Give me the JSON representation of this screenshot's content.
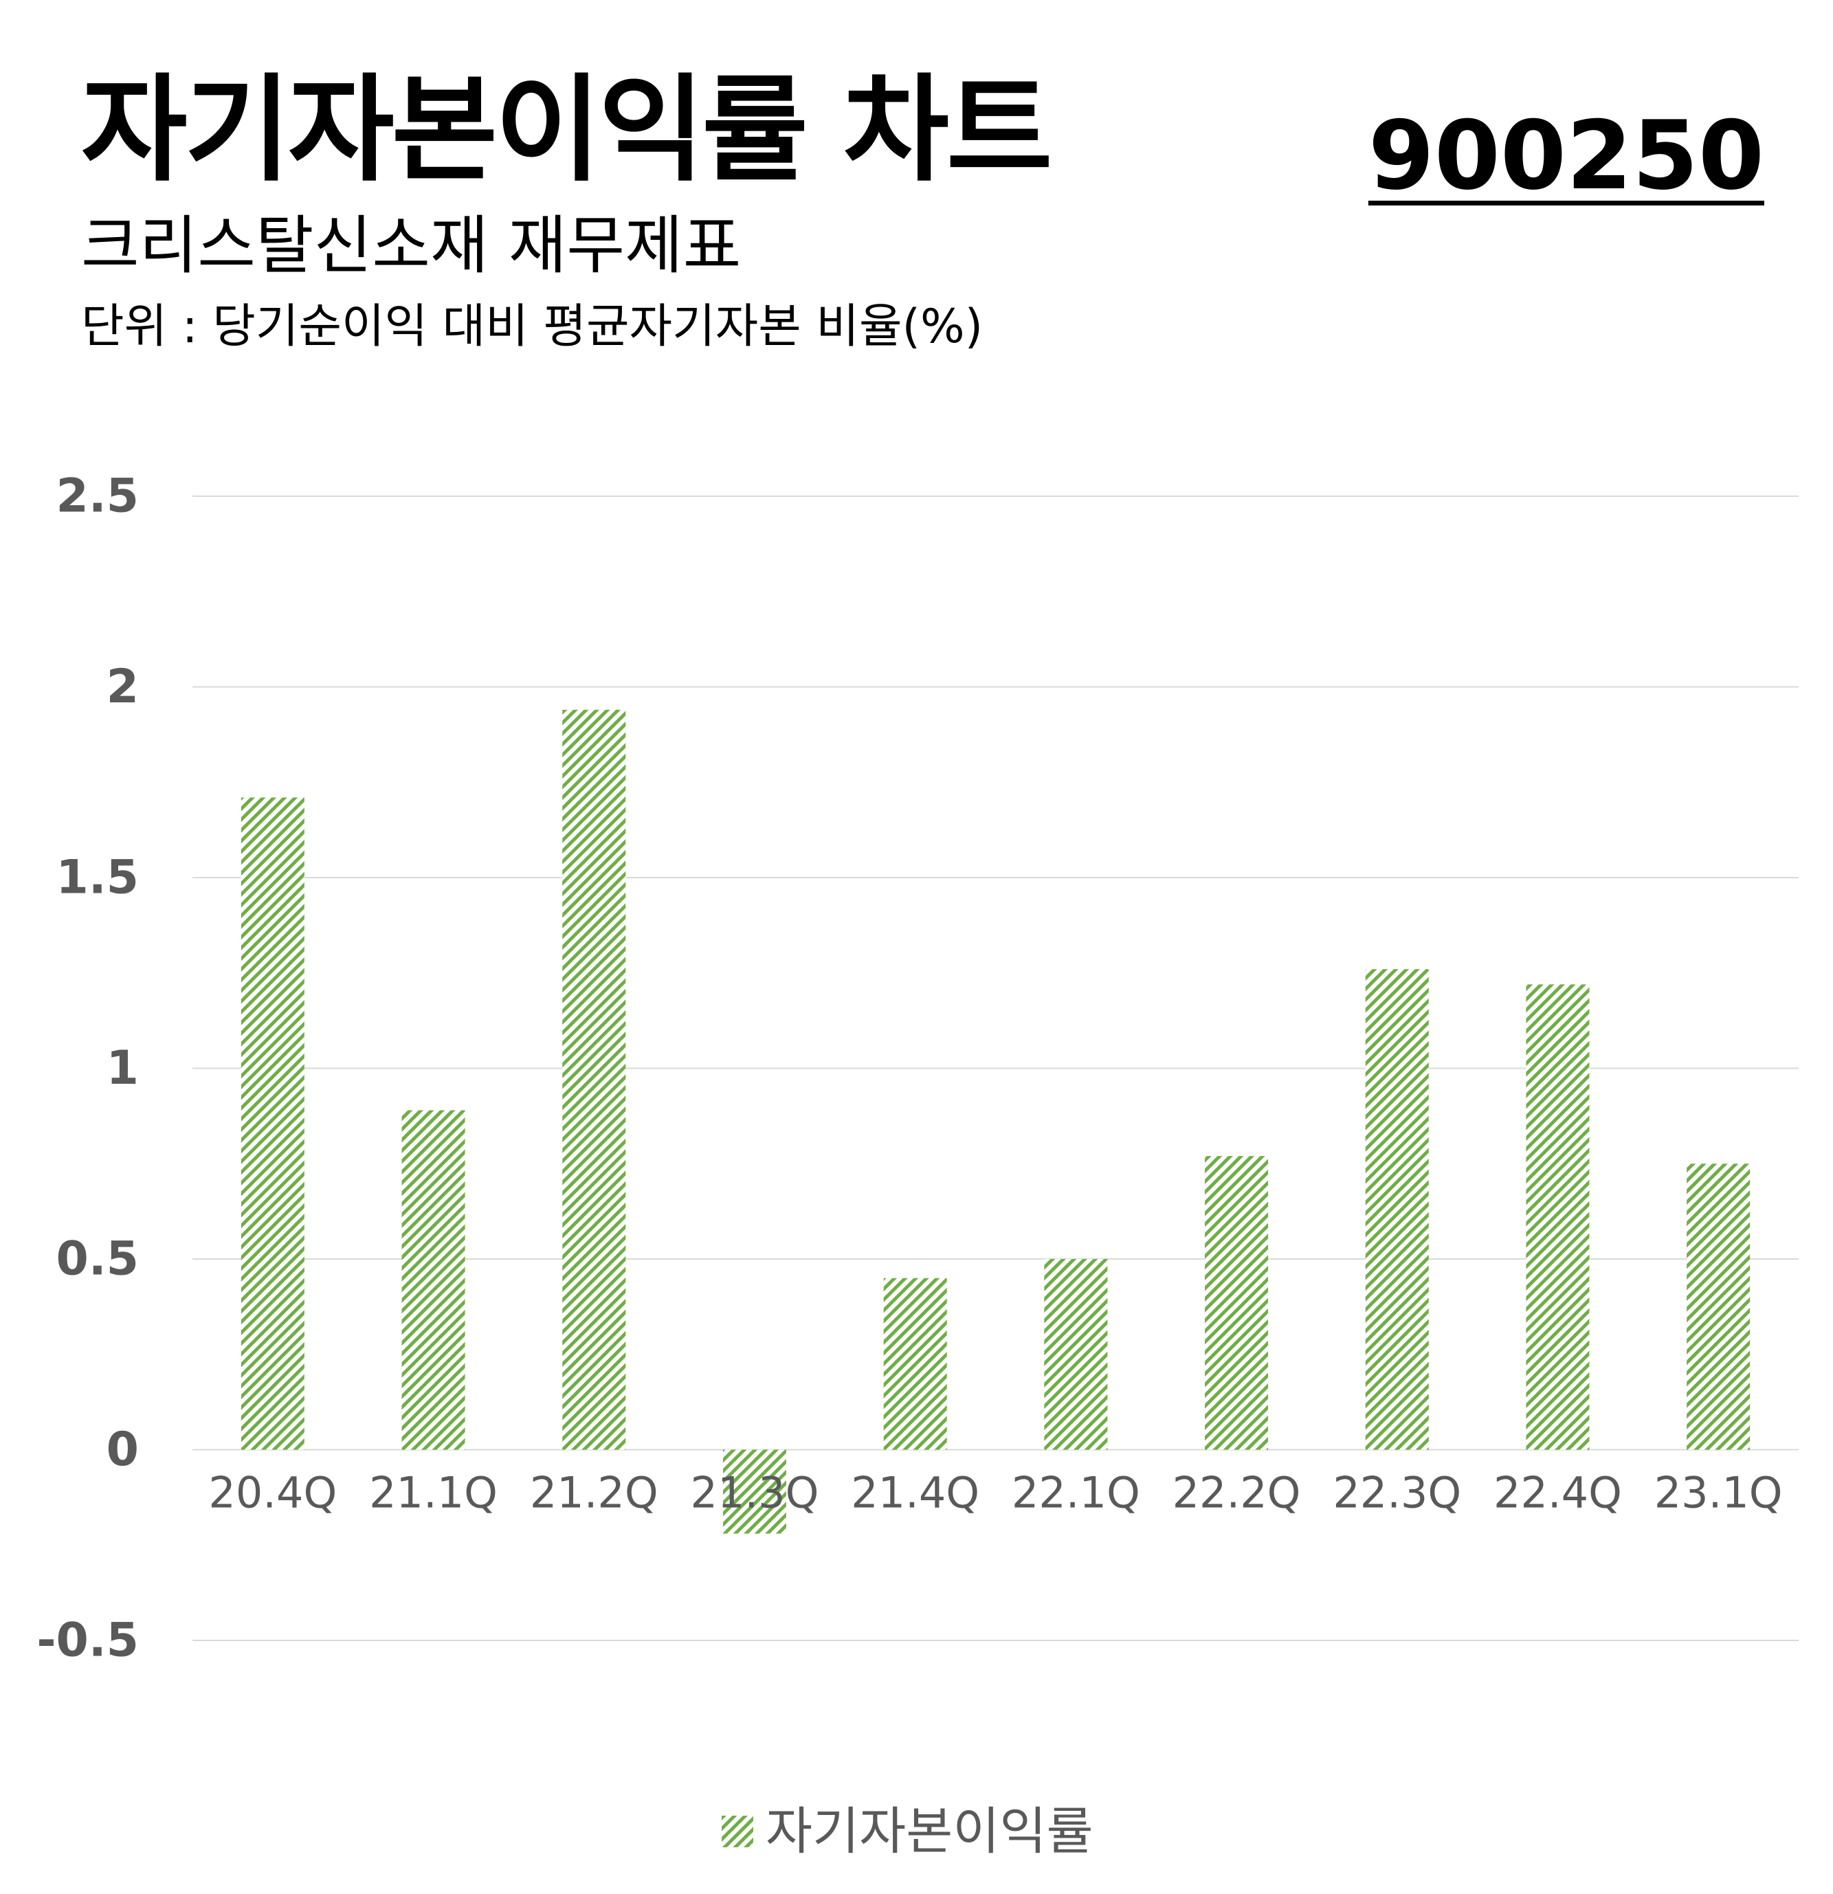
{
  "header": {
    "title": "자기자본이익률 차트",
    "code": "900250",
    "subtitle": "크리스탈신소재 재무제표",
    "unit": "단위 : 당기순이익 대비 평균자기자본 비율(%)"
  },
  "legend": {
    "label": "자기자본이익률"
  },
  "colors": {
    "bar": "#70AD47",
    "grid": "#D9D9D9",
    "tick": "#595959"
  },
  "chart_data": {
    "type": "bar",
    "categories": [
      "20.4Q",
      "21.1Q",
      "21.2Q",
      "21.3Q",
      "21.4Q",
      "22.1Q",
      "22.2Q",
      "22.3Q",
      "22.4Q",
      "23.1Q"
    ],
    "series": [
      {
        "name": "자기자본이익률",
        "values": [
          1.71,
          0.89,
          1.94,
          -0.22,
          0.45,
          0.5,
          0.77,
          1.26,
          1.22,
          0.75
        ]
      }
    ],
    "yticks": [
      "2.5",
      "2",
      "1.5",
      "1",
      "0.5",
      "0",
      "-0.5"
    ],
    "ylim": [
      -0.5,
      2.5
    ],
    "grid": true,
    "legend_position": "bottom",
    "bar_fill": "diagonal-hatch"
  }
}
